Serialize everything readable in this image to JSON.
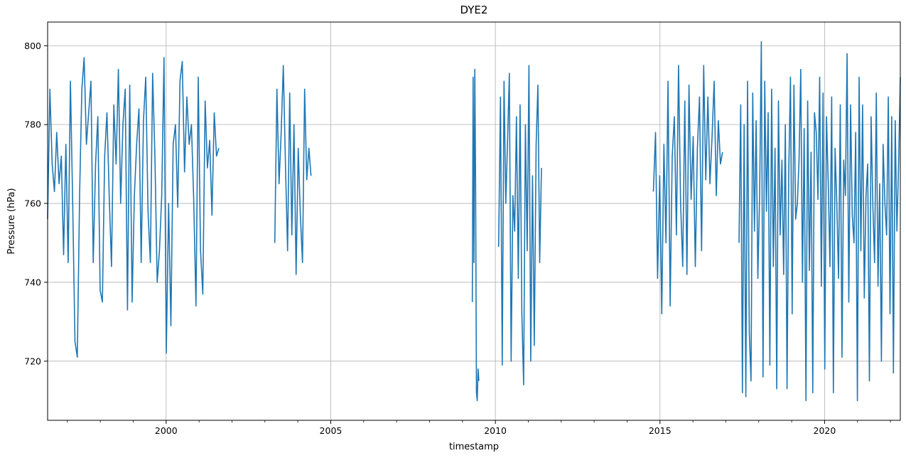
{
  "chart_data": {
    "type": "line",
    "title": "DYE2",
    "xlabel": "timestamp",
    "ylabel": "Pressure (hPa)",
    "xlim": [
      1996.4,
      2022.3
    ],
    "ylim": [
      705,
      806
    ],
    "x_ticks": [
      2000,
      2005,
      2010,
      2015,
      2020
    ],
    "y_ticks": [
      720,
      740,
      760,
      780,
      800
    ],
    "grid": true,
    "legend": "none",
    "series_color": "#1f77b4",
    "segments": [
      {
        "start": 1996.4,
        "end": 2001.6,
        "values": [
          756,
          789,
          770,
          763,
          778,
          765,
          772,
          747,
          775,
          745,
          791,
          760,
          725,
          721,
          762,
          789,
          797,
          775,
          783,
          791,
          745,
          770,
          782,
          738,
          735,
          772,
          783,
          762,
          744,
          785,
          770,
          794,
          760,
          780,
          789,
          733,
          790,
          735,
          762,
          775,
          784,
          745,
          781,
          792,
          758,
          745,
          793,
          772,
          740,
          748,
          762,
          797,
          722,
          760,
          729,
          775,
          780,
          759,
          791,
          796,
          768,
          787,
          775,
          780,
          761,
          734,
          792,
          748,
          737,
          786,
          769,
          776,
          757,
          783,
          772,
          774
        ]
      },
      {
        "start": 2003.3,
        "end": 2004.4,
        "values": [
          750,
          789,
          765,
          778,
          795,
          770,
          748,
          788,
          752,
          780,
          742,
          774,
          757,
          745,
          789,
          766,
          774,
          767
        ]
      },
      {
        "start": 2009.3,
        "end": 2009.5,
        "values": [
          735,
          792,
          745,
          794,
          765,
          712,
          710,
          718,
          715
        ]
      },
      {
        "start": 2010.1,
        "end": 2011.4,
        "values": [
          749,
          787,
          719,
          791,
          760,
          776,
          793,
          720,
          762,
          753,
          782,
          741,
          785,
          732,
          714,
          780,
          748,
          795,
          720,
          767,
          724,
          775,
          790,
          745,
          769
        ]
      },
      {
        "start": 2014.8,
        "end": 2016.9,
        "values": [
          763,
          778,
          741,
          767,
          732,
          775,
          750,
          791,
          734,
          772,
          782,
          752,
          795,
          760,
          744,
          786,
          742,
          790,
          761,
          777,
          744,
          774,
          787,
          748,
          795,
          766,
          787,
          765,
          777,
          791,
          762,
          781,
          770,
          773
        ]
      },
      {
        "start": 2017.4,
        "end": 2022.3,
        "values": [
          750,
          785,
          712,
          780,
          711,
          791,
          727,
          715,
          788,
          753,
          781,
          741,
          762,
          801,
          716,
          791,
          758,
          783,
          719,
          789,
          744,
          774,
          713,
          786,
          752,
          771,
          742,
          780,
          713,
          768,
          792,
          732,
          790,
          756,
          760,
          771,
          794,
          740,
          779,
          710,
          786,
          743,
          773,
          712,
          783,
          778,
          761,
          792,
          739,
          788,
          718,
          782,
          765,
          744,
          787,
          712,
          774,
          760,
          741,
          785,
          721,
          771,
          762,
          798,
          735,
          785,
          757,
          750,
          778,
          710,
          792,
          748,
          785,
          736,
          762,
          770,
          715,
          782,
          759,
          745,
          788,
          739,
          765,
          720,
          775,
          760,
          752,
          787,
          732,
          782,
          717,
          781,
          753,
          770,
          792
        ]
      }
    ]
  }
}
